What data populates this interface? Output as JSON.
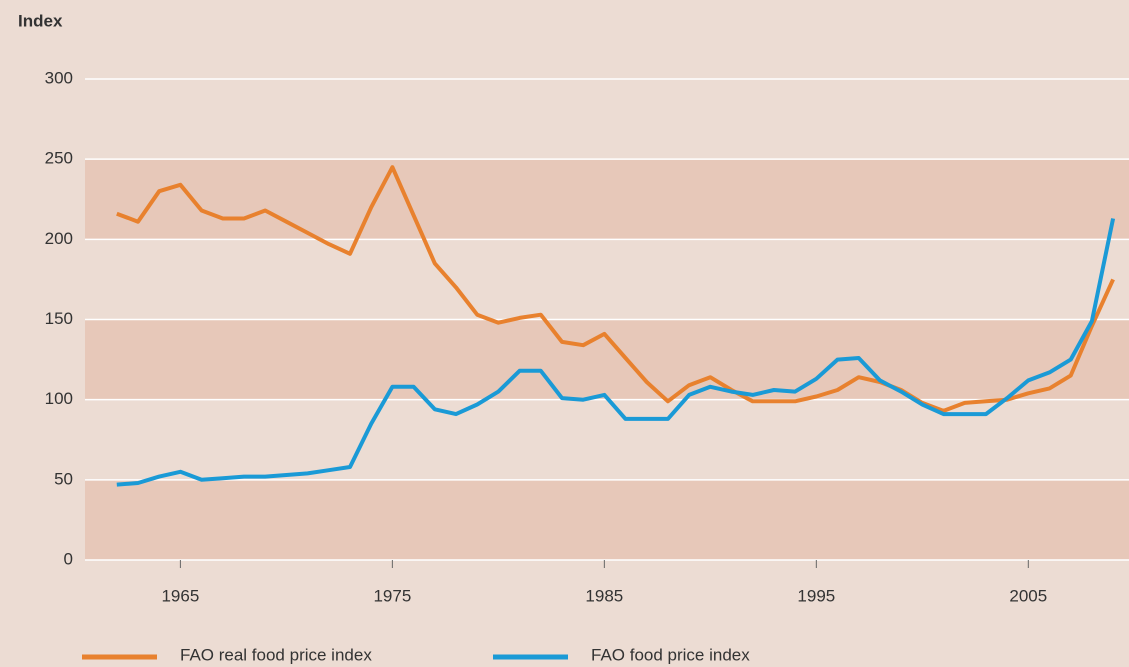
{
  "chart_data": {
    "type": "line",
    "y_label": "Index",
    "x": [
      1962,
      1963,
      1964,
      1965,
      1966,
      1967,
      1968,
      1969,
      1970,
      1971,
      1972,
      1973,
      1974,
      1975,
      1976,
      1977,
      1978,
      1979,
      1980,
      1981,
      1982,
      1983,
      1984,
      1985,
      1986,
      1987,
      1988,
      1989,
      1990,
      1991,
      1992,
      1993,
      1994,
      1995,
      1996,
      1997,
      1998,
      1999,
      2000,
      2001,
      2002,
      2003,
      2004,
      2005,
      2006,
      2007,
      2008,
      2009
    ],
    "series": [
      {
        "name": "FAO real food price index",
        "color": "#e8812e",
        "values": [
          216,
          211,
          230,
          234,
          218,
          213,
          213,
          218,
          211,
          204,
          197,
          191,
          220,
          245,
          215,
          185,
          170,
          153,
          148,
          151,
          153,
          136,
          134,
          141,
          126,
          111,
          99,
          109,
          114,
          106,
          99,
          99,
          99,
          102,
          106,
          114,
          111,
          106,
          98,
          93,
          98,
          99,
          100,
          104,
          107,
          115,
          146,
          175
        ]
      },
      {
        "name": "FAO food price index",
        "color": "#1a9ad6",
        "values": [
          47,
          48,
          52,
          55,
          50,
          51,
          52,
          52,
          53,
          54,
          56,
          58,
          85,
          108,
          108,
          94,
          91,
          97,
          105,
          118,
          118,
          101,
          100,
          103,
          88,
          88,
          88,
          103,
          108,
          105,
          103,
          106,
          105,
          113,
          125,
          126,
          112,
          105,
          97,
          91,
          91,
          91,
          101,
          112,
          117,
          125,
          149,
          213
        ]
      }
    ],
    "xlim": [
      1960.5,
      2009.75
    ],
    "xticks": [
      1965,
      1975,
      1985,
      1995,
      2005
    ],
    "ylim": [
      0,
      300
    ],
    "yticks": [
      0,
      50,
      100,
      150,
      200,
      250,
      300
    ],
    "grid": true,
    "banded": true,
    "legend": "bottom"
  }
}
